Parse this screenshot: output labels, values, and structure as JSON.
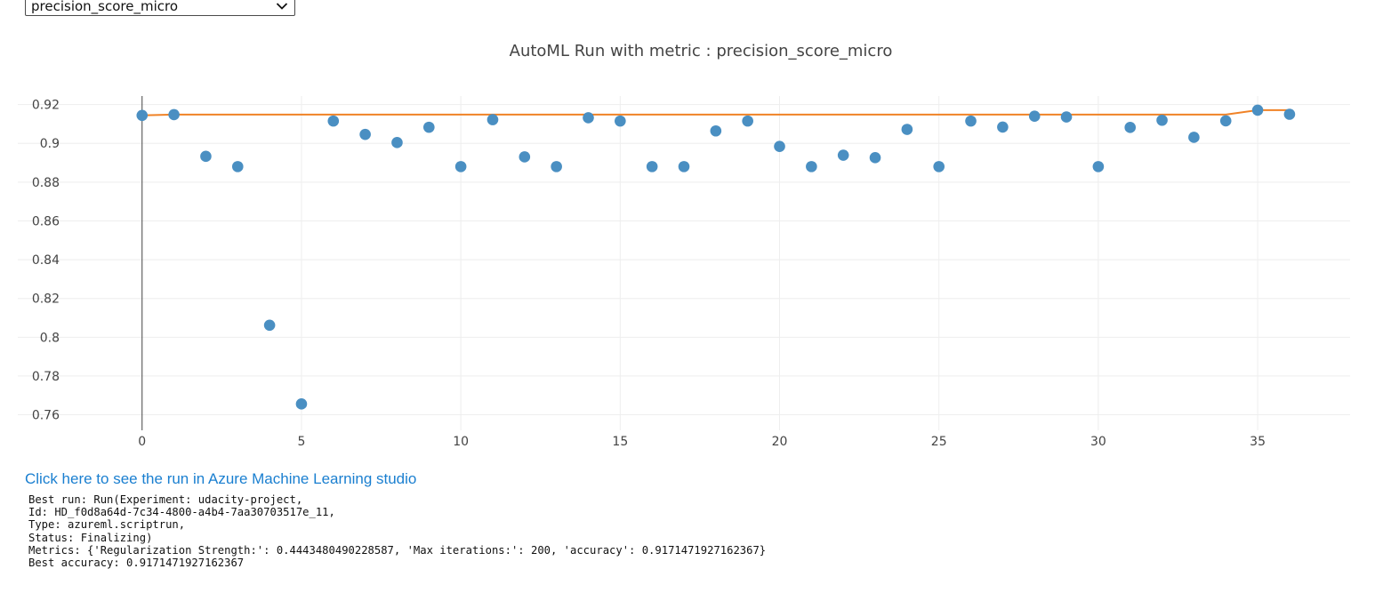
{
  "metric_selector": {
    "selected": "precision_score_micro"
  },
  "colors": {
    "marker": "#4a8fc2",
    "best_line": "#f08226",
    "link": "#1a7fd0",
    "grid": "#eeeeee",
    "zero_line": "#444444",
    "axis_text": "#444444"
  },
  "chart_data": {
    "type": "scatter",
    "title": "AutoML Run with metric : precision_score_micro",
    "xlabel": "",
    "ylabel": "",
    "xlim": [
      -3.9,
      37.9
    ],
    "ylim": [
      0.752,
      0.9244
    ],
    "x_ticks": [
      0,
      5,
      10,
      15,
      20,
      25,
      30,
      35
    ],
    "x_tick_labels": [
      "0",
      "5",
      "10",
      "15",
      "20",
      "25",
      "30",
      "35"
    ],
    "y_ticks": [
      0.76,
      0.78,
      0.8,
      0.82,
      0.84,
      0.86,
      0.88,
      0.9,
      0.92
    ],
    "y_tick_labels": [
      "0.76",
      "0.78",
      "0.8",
      "0.82",
      "0.84",
      "0.86",
      "0.88",
      "0.9",
      "0.92"
    ],
    "grid": true,
    "series": [
      {
        "mode": "markers",
        "x": [
          0,
          1,
          2,
          3,
          4,
          5,
          6,
          7,
          8,
          9,
          10,
          11,
          12,
          13,
          14,
          15,
          16,
          17,
          18,
          19,
          20,
          21,
          22,
          23,
          24,
          25,
          26,
          27,
          28,
          29,
          30,
          31,
          32,
          33,
          34,
          35,
          36
        ],
        "y": [
          0.9144,
          0.9148,
          0.8933,
          0.888,
          0.8062,
          0.7656,
          0.9115,
          0.9046,
          0.9004,
          0.9083,
          0.888,
          0.9122,
          0.893,
          0.888,
          0.9132,
          0.9115,
          0.888,
          0.888,
          0.9064,
          0.9115,
          0.8984,
          0.888,
          0.8939,
          0.8926,
          0.9072,
          0.888,
          0.9115,
          0.9084,
          0.914,
          0.9136,
          0.888,
          0.9082,
          0.9119,
          0.9031,
          0.9116,
          0.9171,
          0.915
        ]
      },
      {
        "mode": "lines",
        "x": [
          0,
          1,
          2,
          3,
          4,
          5,
          6,
          7,
          8,
          9,
          10,
          11,
          12,
          13,
          14,
          15,
          16,
          17,
          18,
          19,
          20,
          21,
          22,
          23,
          24,
          25,
          26,
          27,
          28,
          29,
          30,
          31,
          32,
          33,
          34,
          35,
          36
        ],
        "y": [
          0.9144,
          0.9148,
          0.9148,
          0.9148,
          0.9148,
          0.9148,
          0.9148,
          0.9148,
          0.9148,
          0.9148,
          0.9148,
          0.9148,
          0.9148,
          0.9148,
          0.9148,
          0.9148,
          0.9148,
          0.9148,
          0.9148,
          0.9148,
          0.9148,
          0.9148,
          0.9148,
          0.9148,
          0.9148,
          0.9148,
          0.9148,
          0.9148,
          0.9148,
          0.9148,
          0.9148,
          0.9148,
          0.9148,
          0.9148,
          0.9148,
          0.9171,
          0.9171
        ]
      }
    ]
  },
  "studio_link": {
    "text": "Click here to see the run in Azure Machine Learning studio"
  },
  "run_output": {
    "lines": [
      "Best run: Run(Experiment: udacity-project,",
      "Id: HD_f0d8a64d-7c34-4800-a4b4-7aa30703517e_11,",
      "Type: azureml.scriptrun,",
      "Status: Finalizing)",
      "Metrics: {'Regularization Strength:': 0.4443480490228587, 'Max iterations:': 200, 'accuracy': 0.9171471927162367}",
      "Best accuracy: 0.9171471927162367"
    ]
  }
}
